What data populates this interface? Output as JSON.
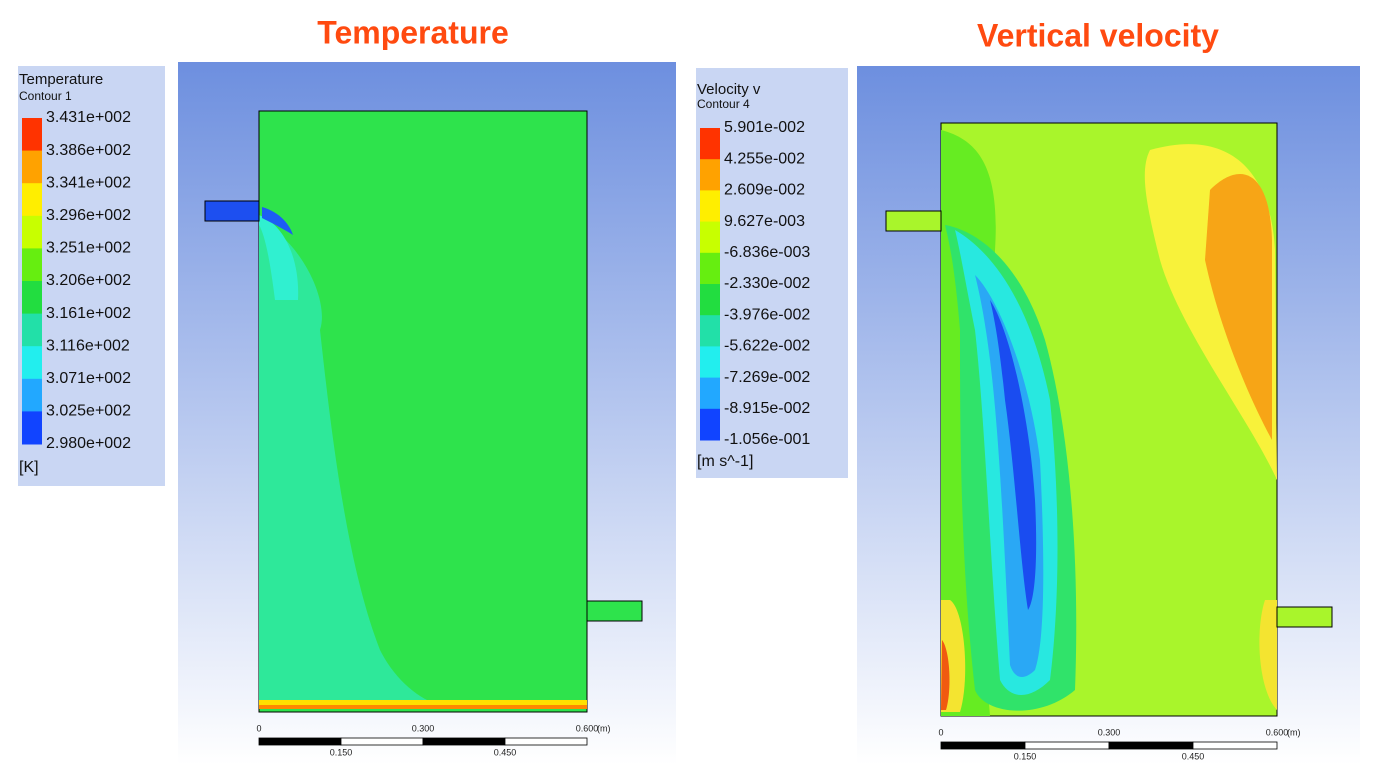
{
  "panels": [
    {
      "title": "Temperature",
      "legend": {
        "title": "Temperature",
        "subtitle": "Contour 1",
        "labels": [
          "3.431e+002",
          "3.386e+002",
          "3.341e+002",
          "3.296e+002",
          "3.251e+002",
          "3.206e+002",
          "3.161e+002",
          "3.116e+002",
          "3.071e+002",
          "3.025e+002",
          "2.980e+002"
        ],
        "unit": "[K]"
      },
      "scale": {
        "start": "0",
        "mid": "0.300",
        "end": "0.600",
        "unit": "(m)",
        "q1": "0.150",
        "q3": "0.450"
      }
    },
    {
      "title": "Vertical velocity",
      "legend": {
        "title": "Velocity v",
        "subtitle": "Contour 4",
        "labels": [
          "5.901e-002",
          "4.255e-002",
          "2.609e-002",
          "9.627e-003",
          "-6.836e-003",
          "-2.330e-002",
          "-3.976e-002",
          "-5.622e-002",
          "-7.269e-002",
          "-8.915e-002",
          "-1.056e-001"
        ],
        "unit": "[m s^-1]"
      },
      "scale": {
        "start": "0",
        "mid": "0.300",
        "end": "0.600",
        "unit": "(m)",
        "q1": "0.150",
        "q3": "0.450"
      }
    }
  ]
}
